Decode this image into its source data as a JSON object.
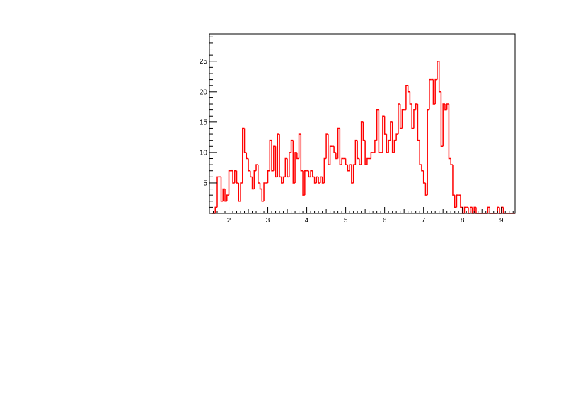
{
  "chart_data": {
    "type": "bar",
    "style": "step-histogram",
    "title": "",
    "xlabel": "",
    "ylabel": "",
    "xlim": [
      1.5,
      9.35
    ],
    "ylim": [
      0,
      29.5
    ],
    "grid": false,
    "legend": "none",
    "line_color": "#ff0000",
    "x_ticks": [
      2,
      3,
      4,
      5,
      6,
      7,
      8,
      9
    ],
    "y_ticks": [
      5,
      10,
      15,
      20,
      25
    ],
    "x_tick_labels": [
      "2",
      "3",
      "4",
      "5",
      "6",
      "7",
      "8",
      "9"
    ],
    "y_tick_labels": [
      "5",
      "10",
      "15",
      "20",
      "25"
    ],
    "bin_width": 0.05,
    "bins_start": 1.55,
    "values": [
      0,
      0,
      1,
      6,
      6,
      2,
      4,
      2,
      3,
      7,
      7,
      5,
      7,
      5,
      2,
      5,
      14,
      10,
      9,
      7,
      6,
      4,
      7,
      8,
      5,
      4,
      2,
      5,
      5,
      7,
      12,
      7,
      11,
      6,
      13,
      6,
      5,
      6,
      9,
      6,
      10,
      12,
      5,
      10,
      9,
      13,
      7,
      3,
      7,
      7,
      6,
      7,
      6,
      5,
      6,
      5,
      6,
      5,
      9,
      13,
      8,
      11,
      11,
      10,
      9,
      14,
      8,
      9,
      9,
      8,
      7,
      8,
      5,
      8,
      12,
      9,
      8,
      15,
      12,
      8,
      9,
      9,
      10,
      10,
      12,
      17,
      10,
      10,
      16,
      13,
      10,
      12,
      15,
      10,
      12,
      13,
      18,
      14,
      17,
      17,
      21,
      20,
      18,
      14,
      17,
      18,
      12,
      8,
      7,
      5,
      3,
      17,
      22,
      22,
      18,
      22,
      25,
      20,
      11,
      18,
      17,
      18,
      9,
      8,
      3,
      1,
      3,
      3,
      1,
      0,
      1,
      1,
      0,
      1,
      0,
      1,
      0,
      0,
      0,
      0,
      0,
      0,
      1,
      0,
      0,
      0,
      0,
      1,
      0,
      1,
      0,
      0,
      0,
      0,
      0,
      0
    ]
  }
}
